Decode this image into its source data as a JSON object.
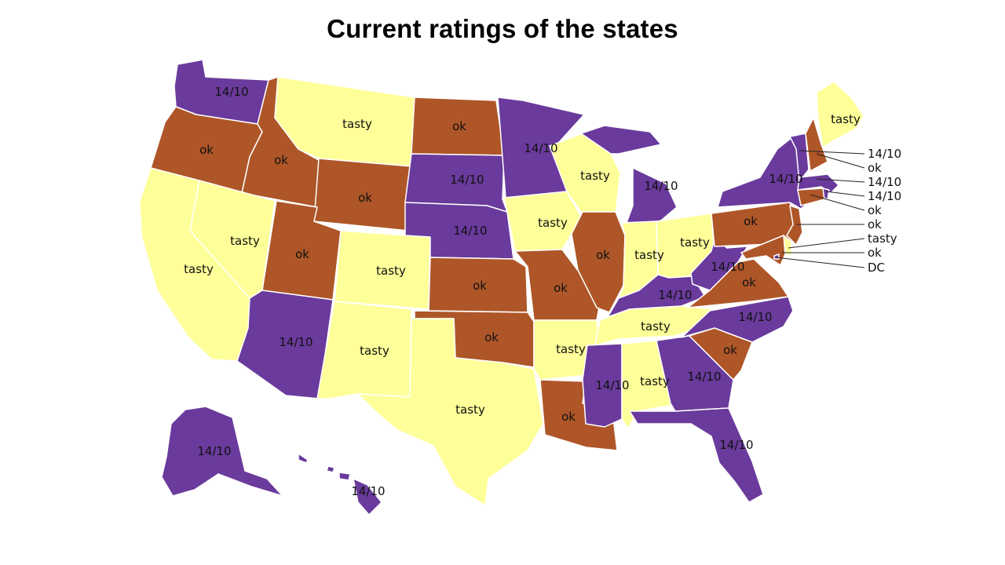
{
  "title": "Current ratings of the states",
  "colors": {
    "14/10": "#6a3a9c",
    "ok": "#ae5628",
    "tasty": "#ffff99"
  },
  "states": [
    {
      "id": "WA",
      "rating": "14/10",
      "label": "14/10"
    },
    {
      "id": "OR",
      "rating": "ok",
      "label": "ok"
    },
    {
      "id": "CA",
      "rating": "tasty",
      "label": "tasty"
    },
    {
      "id": "ID",
      "rating": "ok",
      "label": "ok"
    },
    {
      "id": "NV",
      "rating": "tasty",
      "label": "tasty"
    },
    {
      "id": "MT",
      "rating": "tasty",
      "label": "tasty"
    },
    {
      "id": "WY",
      "rating": "ok",
      "label": "ok"
    },
    {
      "id": "UT",
      "rating": "ok",
      "label": "ok"
    },
    {
      "id": "AZ",
      "rating": "14/10",
      "label": "14/10"
    },
    {
      "id": "CO",
      "rating": "tasty",
      "label": "tasty"
    },
    {
      "id": "NM",
      "rating": "tasty",
      "label": "tasty"
    },
    {
      "id": "ND",
      "rating": "ok",
      "label": "ok"
    },
    {
      "id": "SD",
      "rating": "14/10",
      "label": "14/10"
    },
    {
      "id": "NE",
      "rating": "14/10",
      "label": "14/10"
    },
    {
      "id": "KS",
      "rating": "ok",
      "label": "ok"
    },
    {
      "id": "OK",
      "rating": "ok",
      "label": "ok"
    },
    {
      "id": "TX",
      "rating": "tasty",
      "label": "tasty"
    },
    {
      "id": "MN",
      "rating": "14/10",
      "label": "14/10"
    },
    {
      "id": "IA",
      "rating": "tasty",
      "label": "tasty"
    },
    {
      "id": "MO",
      "rating": "ok",
      "label": "ok"
    },
    {
      "id": "AR",
      "rating": "tasty",
      "label": "tasty"
    },
    {
      "id": "LA",
      "rating": "ok",
      "label": "ok"
    },
    {
      "id": "WI",
      "rating": "tasty",
      "label": "tasty"
    },
    {
      "id": "IL",
      "rating": "ok",
      "label": "ok"
    },
    {
      "id": "MI",
      "rating": "14/10",
      "label": "14/10"
    },
    {
      "id": "IN",
      "rating": "tasty",
      "label": "tasty"
    },
    {
      "id": "OH",
      "rating": "tasty",
      "label": "tasty"
    },
    {
      "id": "KY",
      "rating": "14/10",
      "label": "14/10"
    },
    {
      "id": "TN",
      "rating": "tasty",
      "label": "tasty"
    },
    {
      "id": "MS",
      "rating": "14/10",
      "label": "14/10"
    },
    {
      "id": "AL",
      "rating": "tasty",
      "label": "tasty"
    },
    {
      "id": "GA",
      "rating": "14/10",
      "label": "14/10"
    },
    {
      "id": "FL",
      "rating": "14/10",
      "label": "14/10"
    },
    {
      "id": "SC",
      "rating": "ok",
      "label": "ok"
    },
    {
      "id": "NC",
      "rating": "14/10",
      "label": "14/10"
    },
    {
      "id": "VA",
      "rating": "ok",
      "label": "ok"
    },
    {
      "id": "WV",
      "rating": "14/10",
      "label": "14/10"
    },
    {
      "id": "PA",
      "rating": "ok",
      "label": "ok"
    },
    {
      "id": "NY",
      "rating": "14/10",
      "label": "14/10"
    },
    {
      "id": "ME",
      "rating": "tasty",
      "label": "tasty"
    },
    {
      "id": "AK",
      "rating": "14/10",
      "label": "14/10"
    },
    {
      "id": "HI",
      "rating": "14/10",
      "label": "14/10"
    },
    {
      "id": "VT",
      "rating": "14/10",
      "label": "14/10"
    },
    {
      "id": "NH",
      "rating": "ok",
      "label": "ok"
    },
    {
      "id": "MA",
      "rating": "14/10",
      "label": "14/10"
    },
    {
      "id": "RI",
      "rating": "14/10",
      "label": "14/10"
    },
    {
      "id": "CT",
      "rating": "ok",
      "label": "ok"
    },
    {
      "id": "NJ",
      "rating": "ok",
      "label": "ok"
    },
    {
      "id": "DE",
      "rating": "tasty",
      "label": "tasty"
    },
    {
      "id": "MD",
      "rating": "ok",
      "label": "ok"
    },
    {
      "id": "DC",
      "rating": "",
      "label": "DC"
    }
  ]
}
